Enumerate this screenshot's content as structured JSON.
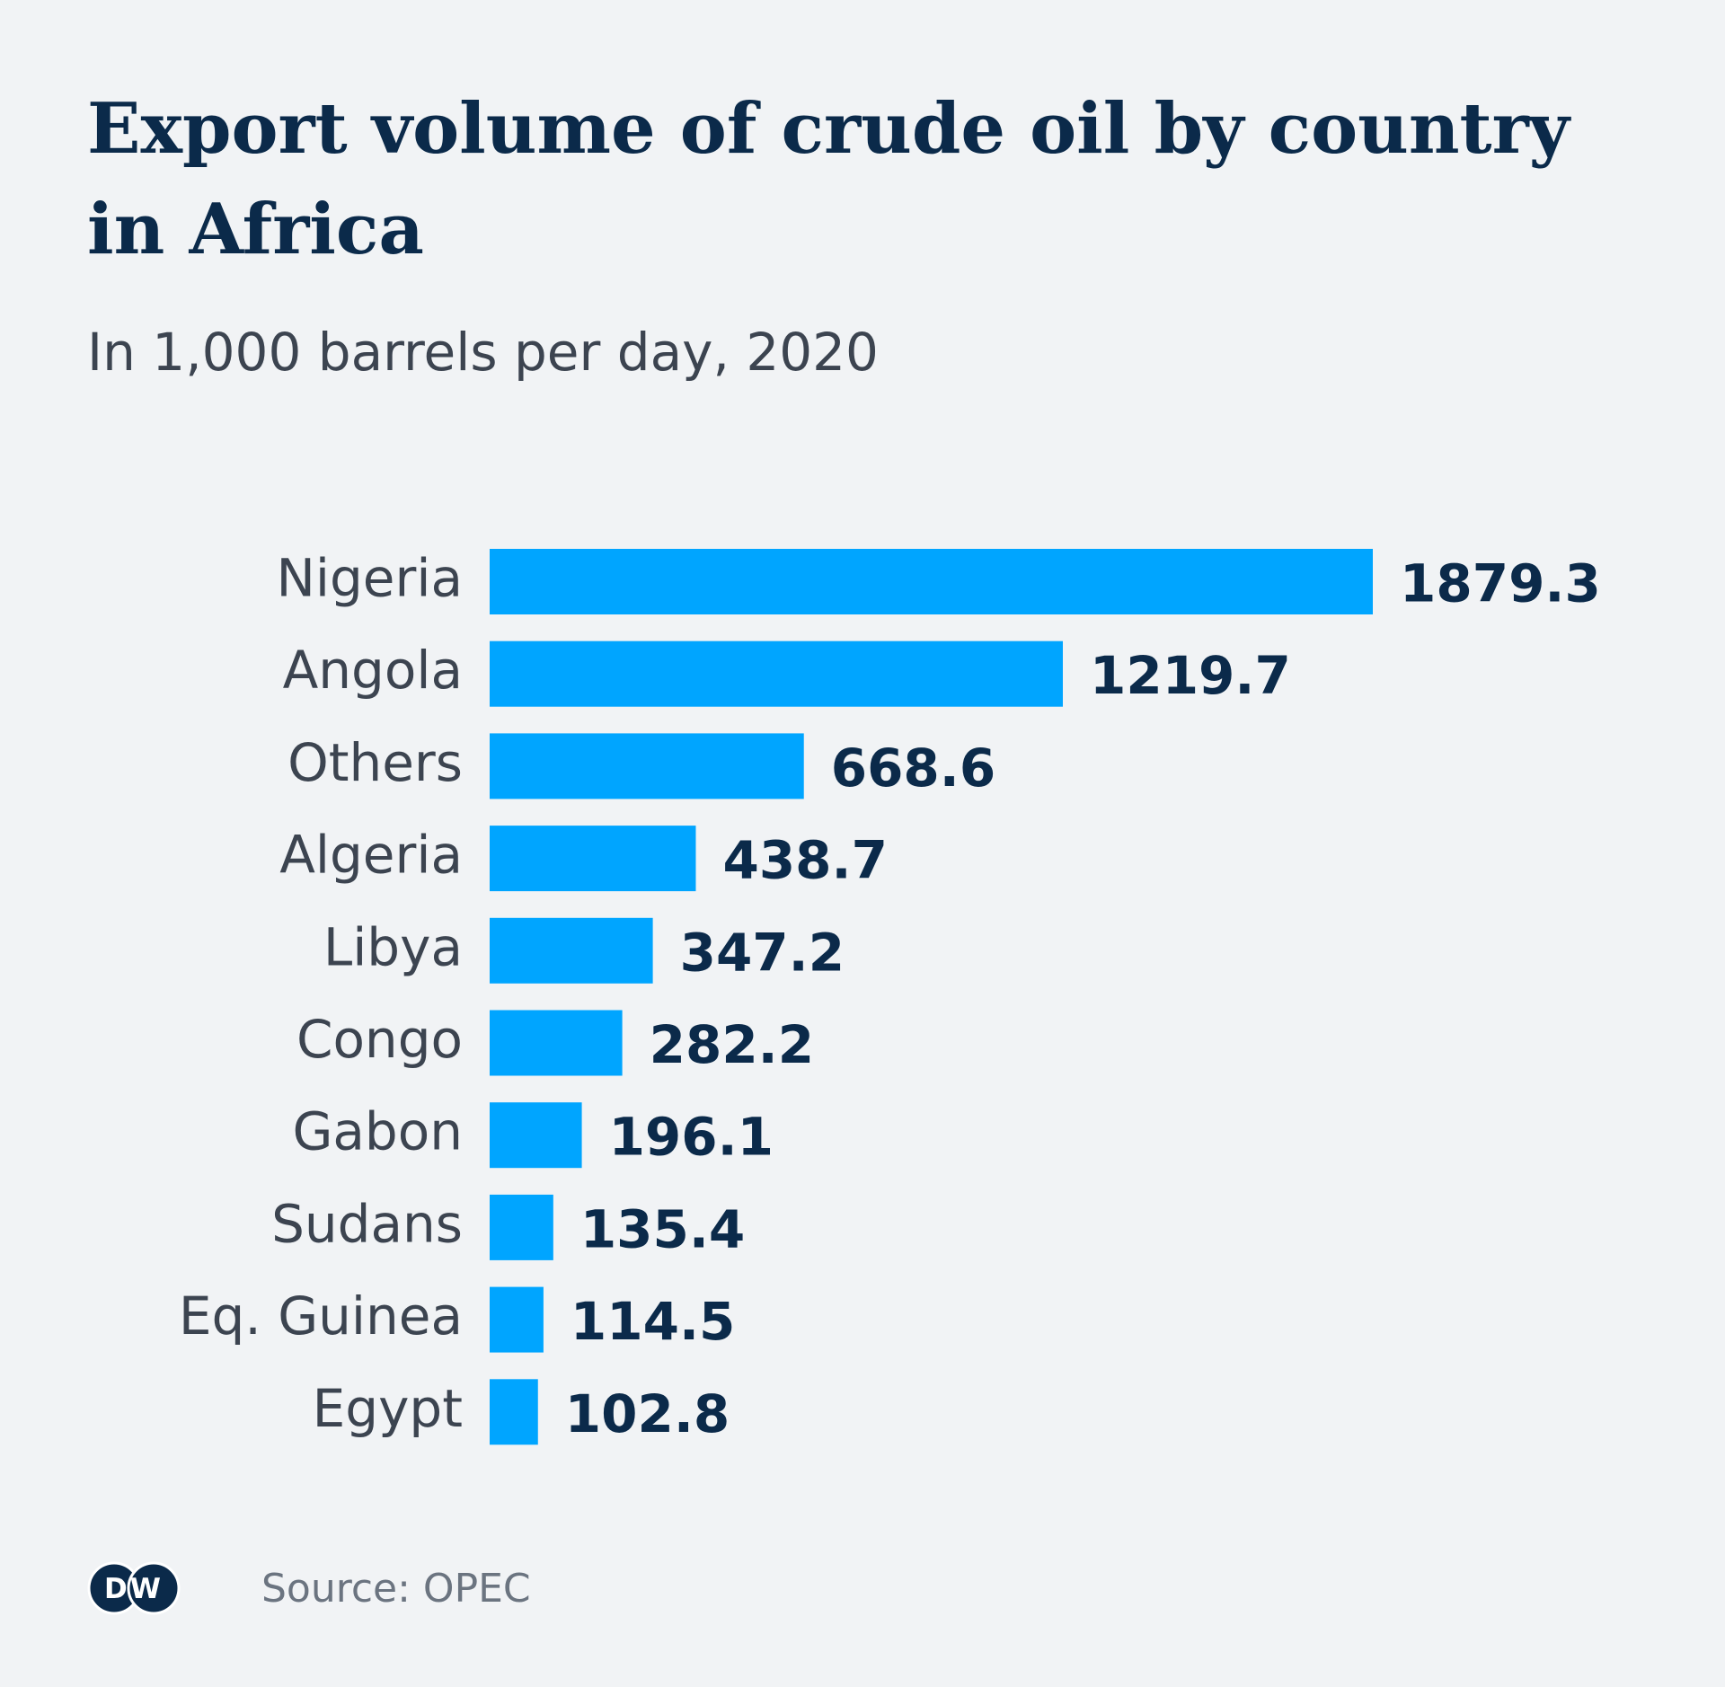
{
  "header": {
    "title": "Export volume of crude oil by country in Africa",
    "subtitle": "In 1,000 barrels per day, 2020"
  },
  "footer": {
    "logo_text": "DW",
    "source": "Source: OPEC"
  },
  "colors": {
    "bar": "#00a5ff",
    "title": "#0b2a4a",
    "background": "#f1f3f5"
  },
  "chart_data": {
    "type": "bar",
    "orientation": "horizontal",
    "categories": [
      "Nigeria",
      "Angola",
      "Others",
      "Algeria",
      "Libya",
      "Congo",
      "Gabon",
      "Sudans",
      "Eq. Guinea",
      "Egypt"
    ],
    "values": [
      1879.3,
      1219.7,
      668.6,
      438.7,
      347.2,
      282.2,
      196.1,
      135.4,
      114.5,
      102.8
    ],
    "value_labels": [
      "1879.3",
      "1219.7",
      "668.6",
      "438.7",
      "347.2",
      "282.2",
      "196.1",
      "135.4",
      "114.5",
      "102.8"
    ],
    "title": "Export volume of crude oil by country in Africa",
    "subtitle": "In 1,000 barrels per day, 2020",
    "xlabel": "",
    "ylabel": "",
    "xlim": [
      0,
      1879.3
    ],
    "grid": false,
    "legend": "none"
  }
}
